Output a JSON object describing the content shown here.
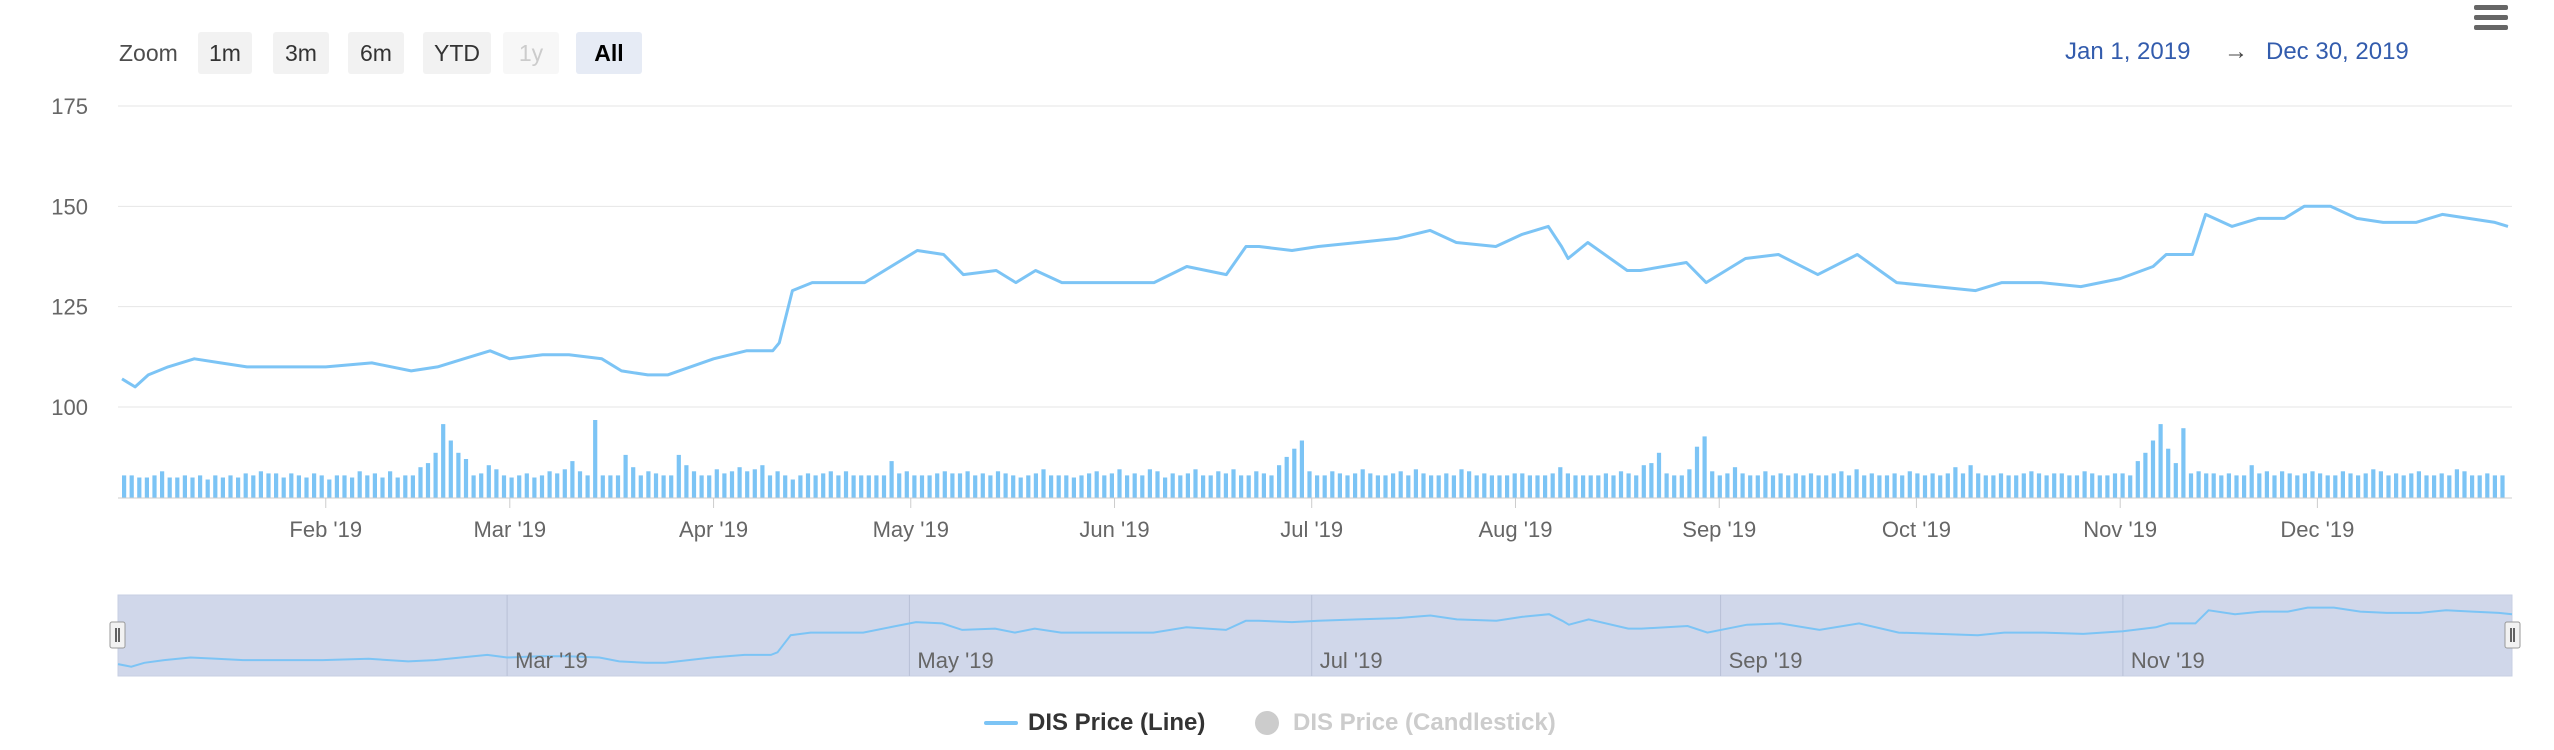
{
  "toolbar": {
    "zoom_label": "Zoom",
    "buttons": [
      {
        "label": "1m",
        "state": "normal"
      },
      {
        "label": "3m",
        "state": "normal"
      },
      {
        "label": "6m",
        "state": "normal"
      },
      {
        "label": "YTD",
        "state": "normal"
      },
      {
        "label": "1y",
        "state": "disabled"
      },
      {
        "label": "All",
        "state": "active"
      }
    ],
    "range_from": "Jan 1, 2019",
    "range_arrow": "→",
    "range_to": "Dec 30, 2019"
  },
  "menu_icon": "hamburger-menu-icon",
  "colors": {
    "line": "#7cc4f5",
    "volume": "#7cc4f5",
    "navigator_fill": "#d0d7ea",
    "legend_active": "#333333",
    "legend_inactive": "#cccccc",
    "grid": "#e6e6e6",
    "range_text": "#335cad"
  },
  "legend": [
    {
      "label": "DIS Price (Line)",
      "active": true
    },
    {
      "label": "DIS Price (Candlestick)",
      "active": false
    }
  ],
  "chart_data": {
    "type": "line",
    "x_axis": {
      "type": "datetime",
      "min": "2019-01-01",
      "max": "2019-12-30",
      "tick_labels": [
        {
          "label": "Feb '19",
          "date": "2019-02-01"
        },
        {
          "label": "Mar '19",
          "date": "2019-03-01"
        },
        {
          "label": "Apr '19",
          "date": "2019-04-01"
        },
        {
          "label": "May '19",
          "date": "2019-05-01"
        },
        {
          "label": "Jun '19",
          "date": "2019-06-01"
        },
        {
          "label": "Jul '19",
          "date": "2019-07-01"
        },
        {
          "label": "Aug '19",
          "date": "2019-08-01"
        },
        {
          "label": "Sep '19",
          "date": "2019-09-01"
        },
        {
          "label": "Oct '19",
          "date": "2019-10-01"
        },
        {
          "label": "Nov '19",
          "date": "2019-11-01"
        },
        {
          "label": "Dec '19",
          "date": "2019-12-01"
        }
      ]
    },
    "y_axis": {
      "min": 100,
      "max": 175,
      "ticks": [
        100,
        125,
        150,
        175
      ],
      "grid": true
    },
    "navigator": {
      "tick_labels": [
        {
          "label": "Mar '19",
          "date": "2019-03-01"
        },
        {
          "label": "May '19",
          "date": "2019-05-01"
        },
        {
          "label": "Jul '19",
          "date": "2019-07-01"
        },
        {
          "label": "Sep '19",
          "date": "2019-09-01"
        },
        {
          "label": "Nov '19",
          "date": "2019-11-01"
        }
      ]
    },
    "series": [
      {
        "kind": "price",
        "x": [
          "2019-01-01",
          "2019-01-03",
          "2019-01-05",
          "2019-01-08",
          "2019-01-12",
          "2019-01-16",
          "2019-01-20",
          "2019-01-25",
          "2019-02-01",
          "2019-02-08",
          "2019-02-14",
          "2019-02-18",
          "2019-02-22",
          "2019-02-26",
          "2019-03-01",
          "2019-03-06",
          "2019-03-10",
          "2019-03-15",
          "2019-03-18",
          "2019-03-22",
          "2019-03-25",
          "2019-04-01",
          "2019-04-06",
          "2019-04-10",
          "2019-04-11",
          "2019-04-13",
          "2019-04-16",
          "2019-04-18",
          "2019-04-24",
          "2019-04-29",
          "2019-05-02",
          "2019-05-06",
          "2019-05-09",
          "2019-05-14",
          "2019-05-17",
          "2019-05-20",
          "2019-05-24",
          "2019-05-31",
          "2019-06-07",
          "2019-06-12",
          "2019-06-18",
          "2019-06-21",
          "2019-06-23",
          "2019-06-28",
          "2019-07-02",
          "2019-07-08",
          "2019-07-14",
          "2019-07-19",
          "2019-07-23",
          "2019-07-29",
          "2019-08-02",
          "2019-08-06",
          "2019-08-08",
          "2019-08-09",
          "2019-08-12",
          "2019-08-18",
          "2019-08-20",
          "2019-08-27",
          "2019-08-30",
          "2019-09-05",
          "2019-09-10",
          "2019-09-16",
          "2019-09-22",
          "2019-09-28",
          "2019-10-04",
          "2019-10-10",
          "2019-10-14",
          "2019-10-20",
          "2019-10-26",
          "2019-11-01",
          "2019-11-06",
          "2019-11-08",
          "2019-11-12",
          "2019-11-14",
          "2019-11-18",
          "2019-11-22",
          "2019-11-26",
          "2019-11-29",
          "2019-12-03",
          "2019-12-07",
          "2019-12-11",
          "2019-12-16",
          "2019-12-20",
          "2019-12-24",
          "2019-12-28",
          "2019-12-30"
        ],
        "y": [
          107,
          105,
          108,
          110,
          112,
          111,
          110,
          110,
          110,
          111,
          109,
          110,
          112,
          114,
          112,
          113,
          113,
          112,
          109,
          108,
          108,
          112,
          114,
          114,
          116,
          129,
          131,
          131,
          131,
          136,
          139,
          138,
          133,
          134,
          131,
          134,
          131,
          131,
          131,
          135,
          133,
          140,
          140,
          139,
          140,
          141,
          142,
          144,
          141,
          140,
          143,
          145,
          140,
          137,
          141,
          134,
          134,
          136,
          131,
          137,
          138,
          133,
          138,
          131,
          130,
          129,
          131,
          131,
          130,
          132,
          135,
          138,
          138,
          148,
          145,
          147,
          147,
          150,
          150,
          147,
          146,
          146,
          148,
          147,
          146,
          145
        ]
      },
      {
        "kind": "volume",
        "note": "relative heights",
        "y": [
          11,
          11,
          10,
          10,
          11,
          13,
          10,
          10,
          11,
          10,
          11,
          9,
          11,
          10,
          11,
          10,
          12,
          11,
          13,
          12,
          12,
          10,
          12,
          11,
          10,
          12,
          11,
          9,
          11,
          11,
          10,
          13,
          11,
          12,
          10,
          13,
          10,
          11,
          11,
          15,
          17,
          22,
          36,
          28,
          22,
          19,
          11,
          12,
          16,
          14,
          11,
          10,
          11,
          12,
          10,
          11,
          13,
          12,
          14,
          18,
          13,
          11,
          38,
          11,
          11,
          11,
          21,
          15,
          11,
          13,
          12,
          11,
          11,
          21,
          16,
          13,
          11,
          11,
          14,
          12,
          13,
          15,
          13,
          14,
          16,
          11,
          13,
          11,
          9,
          11,
          12,
          11,
          12,
          13,
          11,
          13,
          11,
          11,
          11,
          11,
          11,
          18,
          12,
          13,
          11,
          11,
          11,
          12,
          13,
          12,
          12,
          13,
          11,
          12,
          11,
          13,
          12,
          11,
          10,
          11,
          12,
          14,
          11,
          11,
          11,
          10,
          11,
          12,
          13,
          11,
          12,
          14,
          11,
          12,
          11,
          14,
          13,
          10,
          12,
          11,
          12,
          14,
          11,
          11,
          13,
          12,
          14,
          11,
          11,
          13,
          12,
          11,
          16,
          20,
          24,
          28,
          13,
          11,
          11,
          13,
          12,
          11,
          12,
          14,
          12,
          11,
          11,
          12,
          13,
          11,
          14,
          12,
          11,
          11,
          12,
          11,
          14,
          13,
          11,
          12,
          11,
          11,
          11,
          12,
          12,
          11,
          11,
          11,
          12,
          15,
          12,
          11,
          11,
          11,
          11,
          12,
          11,
          13,
          12,
          11,
          16,
          17,
          22,
          12,
          11,
          11,
          14,
          25,
          30,
          13,
          11,
          12,
          15,
          12,
          11,
          11,
          13,
          11,
          12,
          11,
          12,
          11,
          12,
          11,
          11,
          12,
          13,
          11,
          14,
          11,
          12,
          11,
          11,
          12,
          11,
          13,
          12,
          11,
          12,
          11,
          12,
          15,
          12,
          16,
          12,
          11,
          11,
          12,
          11,
          11,
          12,
          13,
          12,
          11,
          12,
          12,
          11,
          11,
          13,
          12,
          11,
          11,
          12,
          12,
          11,
          18,
          22,
          28,
          36,
          24,
          17,
          34,
          12,
          13,
          12,
          12,
          11,
          12,
          11,
          11,
          16,
          12,
          13,
          11,
          13,
          12,
          11,
          12,
          13,
          12,
          11,
          11,
          13,
          12,
          11,
          12,
          14,
          13,
          11,
          12,
          11,
          12,
          13,
          11,
          11,
          12,
          11,
          14,
          13,
          11,
          11,
          12,
          11,
          11
        ]
      }
    ]
  }
}
